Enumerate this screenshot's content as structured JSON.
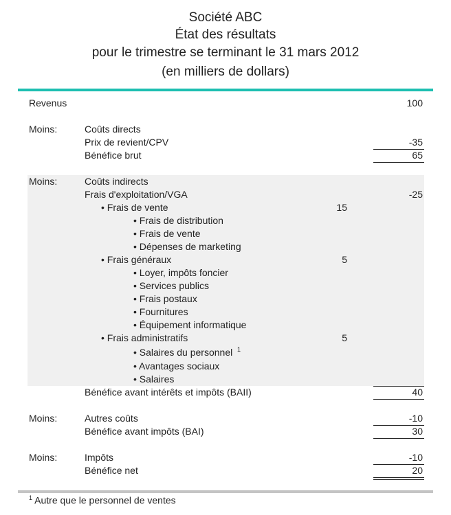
{
  "header": {
    "company": "Société ABC",
    "statement": "État des résultats",
    "period": "pour le trimestre se terminant le 31 mars 2012",
    "units": "(en milliers de dollars)"
  },
  "rows": [
    {
      "prefix": "",
      "label": "Revenus",
      "level": 0,
      "mid": "",
      "value": "100"
    },
    {
      "prefix": "Moins:",
      "label": "Coûts directs",
      "level": 1,
      "mid": "",
      "value": ""
    },
    {
      "prefix": "",
      "label": "Prix de revient/CPV",
      "level": 1,
      "mid": "",
      "value": "-35",
      "underline": "single"
    },
    {
      "prefix": "",
      "label": "Bénéfice brut",
      "level": 1,
      "mid": "",
      "value": "65",
      "underline": "single"
    },
    {
      "prefix": "Moins:",
      "label": "Coûts indirects",
      "level": 1,
      "mid": "",
      "value": ""
    },
    {
      "prefix": "",
      "label": "Frais d'exploitation/VGA",
      "level": 1,
      "mid": "",
      "value": "-25"
    },
    {
      "prefix": "",
      "label": "• Frais de vente",
      "level": 2,
      "mid": "15",
      "value": ""
    },
    {
      "prefix": "",
      "label": "• Frais de distribution",
      "level": 3,
      "mid": "",
      "value": ""
    },
    {
      "prefix": "",
      "label": "• Frais de vente",
      "level": 3,
      "mid": "",
      "value": ""
    },
    {
      "prefix": "",
      "label": "• Dépenses de marketing",
      "level": 3,
      "mid": "",
      "value": ""
    },
    {
      "prefix": "",
      "label": "• Frais généraux",
      "level": 2,
      "mid": "5",
      "value": ""
    },
    {
      "prefix": "",
      "label": "• Loyer, impôts foncier",
      "level": 3,
      "mid": "",
      "value": ""
    },
    {
      "prefix": "",
      "label": "• Services publics",
      "level": 3,
      "mid": "",
      "value": ""
    },
    {
      "prefix": "",
      "label": "• Frais postaux",
      "level": 3,
      "mid": "",
      "value": ""
    },
    {
      "prefix": "",
      "label": "• Fournitures",
      "level": 3,
      "mid": "",
      "value": ""
    },
    {
      "prefix": "",
      "label": "• Équipement informatique",
      "level": 3,
      "mid": "",
      "value": ""
    },
    {
      "prefix": "",
      "label": "• Frais administratifs",
      "level": 2,
      "mid": "5",
      "value": ""
    },
    {
      "prefix": "",
      "label": "• Salaires du personnel",
      "sup": "1",
      "level": 3,
      "mid": "",
      "value": ""
    },
    {
      "prefix": "",
      "label": "• Avantages sociaux",
      "level": 3,
      "mid": "",
      "value": ""
    },
    {
      "prefix": "",
      "label": "• Salaires",
      "level": 3,
      "mid": "",
      "value": "",
      "underline": "single"
    },
    {
      "prefix": "",
      "label": "Bénéfice avant intérêts et impôts (BAII)",
      "level": 1,
      "mid": "",
      "value": "40",
      "underline": "single"
    },
    {
      "prefix": "Moins:",
      "label": "Autres coûts",
      "level": 1,
      "mid": "",
      "value": "-10",
      "underline": "single"
    },
    {
      "prefix": "",
      "label": "Bénéfice avant impôts (BAI)",
      "level": 1,
      "mid": "",
      "value": "30",
      "underline": "single"
    },
    {
      "prefix": "Moins:",
      "label": "Impôts",
      "level": 1,
      "mid": "",
      "value": "-10",
      "underline": "single"
    },
    {
      "prefix": "",
      "label": "Bénéfice net",
      "level": 1,
      "mid": "",
      "value": "20",
      "underline": "double"
    }
  ],
  "footnote": {
    "mark": "1",
    "text": "Autre que le personnel de ventes"
  },
  "colors": {
    "accent": "#1dbfb1",
    "shade": "#f0f0f0",
    "rule": "#c4c4c4"
  }
}
